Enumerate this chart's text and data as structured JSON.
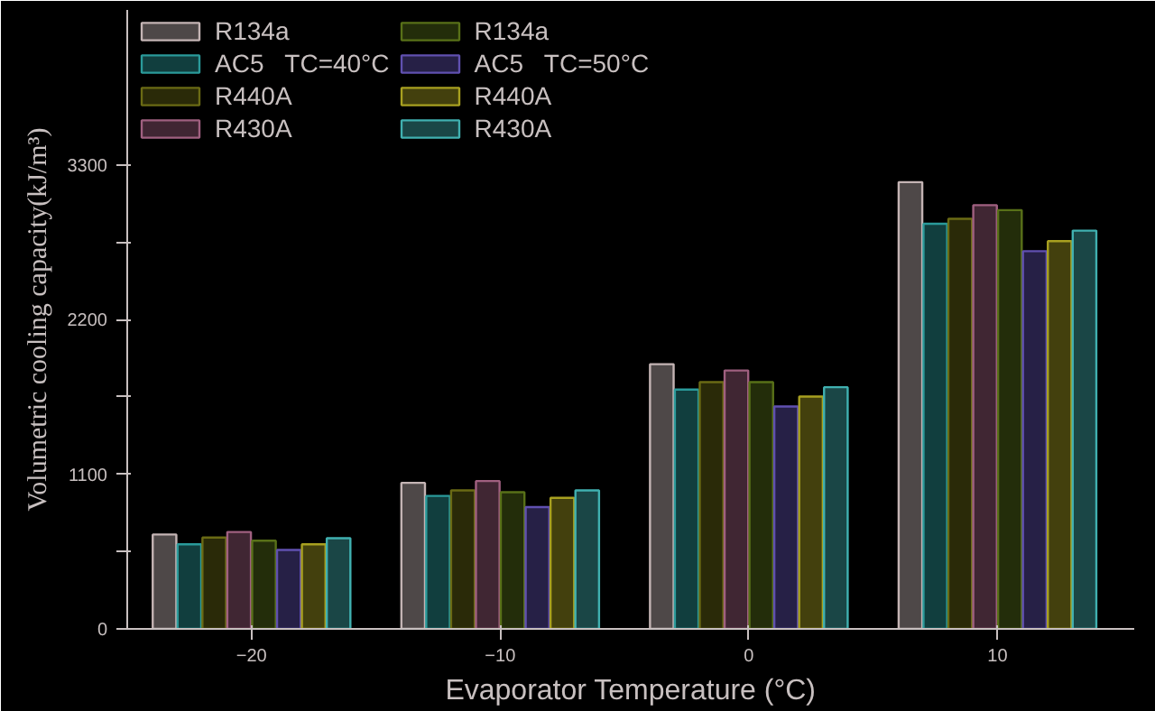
{
  "chart_data": {
    "type": "bar",
    "xlabel": "Evaporator Temperature (°C)",
    "ylabel": "Volumetric cooling capacity(kJ/m³)",
    "x": [
      -20,
      -10,
      0,
      10
    ],
    "xlim": [
      -25,
      15.5
    ],
    "xticks": [
      -20,
      -10,
      0,
      10
    ],
    "ylim": [
      0,
      4400
    ],
    "yticks": [
      0,
      {
        "value": 550,
        "label": null
      },
      1100,
      {
        "value": 1650,
        "label": null
      },
      2200,
      {
        "value": 2750,
        "label": null
      },
      3300
    ],
    "legend": "top left",
    "grid": false,
    "series": [
      {
        "name": "R134a",
        "color": "#c4b4b4",
        "values": [
          671,
          1038,
          1882,
          3176
        ]
      },
      {
        "name": "AC5   TC=40°C",
        "color": "#2a9a9a",
        "values": [
          601,
          945,
          1701,
          2880
        ]
      },
      {
        "name": "R440A",
        "color": "#6a6a14",
        "values": [
          649,
          985,
          1754,
          2915
        ]
      },
      {
        "name": "R430A",
        "color": "#a06080",
        "values": [
          689,
          1051,
          1837,
          3012
        ]
      },
      {
        "name": "R134a",
        "color": "#587018",
        "values": [
          627,
          972,
          1754,
          2977
        ]
      },
      {
        "name": "AC5   TC=50°C",
        "color": "#6050b0",
        "values": [
          561,
          866,
          1581,
          2685
        ]
      },
      {
        "name": "R440A",
        "color": "#a8a020",
        "values": [
          601,
          932,
          1652,
          2756
        ]
      },
      {
        "name": "R430A",
        "color": "#40b0b0",
        "values": [
          645,
          985,
          1718,
          2831
        ]
      }
    ]
  }
}
